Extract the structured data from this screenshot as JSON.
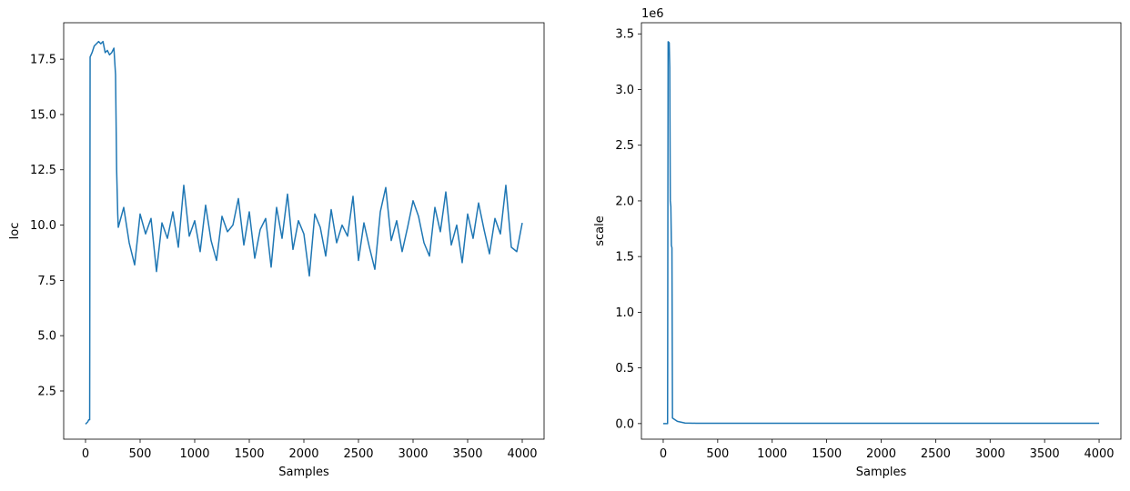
{
  "chart_data": [
    {
      "type": "line",
      "xlabel": "Samples",
      "ylabel": "loc",
      "xlim": [
        -200,
        4200
      ],
      "ylim": [
        0.32,
        19.15
      ],
      "xticks": [
        0,
        500,
        1000,
        1500,
        2000,
        2500,
        3000,
        3500,
        4000
      ],
      "yticks": [
        2.5,
        {
          "value": 5,
          "label": "5.0"
        },
        7.5,
        {
          "value": 10,
          "label": "10.0"
        },
        12.5,
        {
          "value": 15,
          "label": "15.0"
        },
        17.5
      ],
      "x": [
        0,
        10,
        20,
        30,
        38,
        42,
        60,
        80,
        100,
        120,
        140,
        160,
        180,
        200,
        220,
        240,
        260,
        275,
        285,
        295,
        300,
        350,
        400,
        450,
        500,
        550,
        600,
        650,
        700,
        750,
        800,
        850,
        900,
        950,
        1000,
        1050,
        1100,
        1150,
        1200,
        1250,
        1300,
        1350,
        1400,
        1450,
        1500,
        1550,
        1600,
        1650,
        1700,
        1750,
        1800,
        1850,
        1900,
        1950,
        2000,
        2050,
        2100,
        2150,
        2200,
        2250,
        2300,
        2350,
        2400,
        2450,
        2500,
        2550,
        2600,
        2650,
        2700,
        2750,
        2800,
        2850,
        2900,
        2950,
        3000,
        3050,
        3100,
        3150,
        3200,
        3250,
        3300,
        3350,
        3400,
        3450,
        3500,
        3550,
        3600,
        3650,
        3700,
        3750,
        3800,
        3850,
        3900,
        3950,
        4000
      ],
      "series": [
        {
          "color": "#1f77b4",
          "values": [
            1.0,
            1.05,
            1.1,
            1.2,
            1.2,
            17.6,
            17.8,
            18.1,
            18.2,
            18.3,
            18.2,
            18.3,
            17.8,
            17.9,
            17.7,
            17.8,
            18.0,
            16.8,
            12.5,
            10.5,
            9.9,
            10.8,
            9.2,
            8.2,
            10.5,
            9.6,
            10.3,
            7.9,
            10.1,
            9.4,
            10.6,
            9.0,
            11.8,
            9.5,
            10.2,
            8.8,
            10.9,
            9.3,
            8.4,
            10.4,
            9.7,
            10.0,
            11.2,
            9.1,
            10.6,
            8.5,
            9.8,
            10.3,
            8.1,
            10.8,
            9.4,
            11.4,
            8.9,
            10.2,
            9.6,
            7.7,
            10.5,
            9.9,
            8.6,
            10.7,
            9.2,
            10.0,
            9.5,
            11.3,
            8.4,
            10.1,
            9.0,
            8.0,
            10.6,
            11.7,
            9.3,
            10.2,
            8.8,
            9.9,
            11.1,
            10.4,
            9.2,
            8.6,
            10.8,
            9.7,
            11.5,
            9.1,
            10.0,
            8.3,
            10.5,
            9.4,
            11.0,
            9.8,
            8.7,
            10.3,
            9.6,
            11.8,
            9.0,
            8.8,
            10.1
          ]
        }
      ]
    },
    {
      "type": "line",
      "xlabel": "Samples",
      "ylabel": "scale",
      "offset_label": "1e6",
      "xlim": [
        -200,
        4200
      ],
      "ylim": [
        -0.14,
        3.6
      ],
      "xticks": [
        0,
        500,
        1000,
        1500,
        2000,
        2500,
        3000,
        3500,
        4000
      ],
      "yticks": [
        {
          "value": 0,
          "label": "0.0"
        },
        0.5,
        {
          "value": 1,
          "label": "1.0"
        },
        1.5,
        {
          "value": 2,
          "label": "2.0"
        },
        2.5,
        {
          "value": 3,
          "label": "3.0"
        },
        3.5
      ],
      "x": [
        0,
        40,
        45,
        55,
        60,
        65,
        70,
        75,
        80,
        85,
        100,
        130,
        200,
        300,
        4000
      ],
      "series": [
        {
          "color": "#1f77b4",
          "values": [
            0,
            0,
            3.43,
            3.42,
            3.2,
            2.0,
            1.95,
            1.6,
            1.58,
            0.05,
            0.04,
            0.02,
            0.005,
            0.003,
            0.003
          ]
        }
      ]
    }
  ]
}
